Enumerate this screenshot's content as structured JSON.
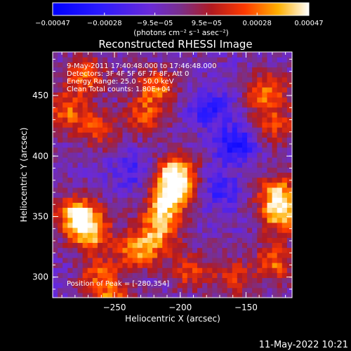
{
  "chart_data": {
    "type": "heatmap",
    "title": "Reconstructed RHESSI Image",
    "xlabel": "Heliocentric X (arcsec)",
    "ylabel": "Heliocentric Y (arcsec)",
    "xlim": [
      -297,
      -115
    ],
    "ylim": [
      283,
      486
    ],
    "x_ticks": [
      {
        "value": -250,
        "label": "−250"
      },
      {
        "value": -200,
        "label": "−200"
      },
      {
        "value": -150,
        "label": "−150"
      }
    ],
    "y_ticks": [
      {
        "value": 300,
        "label": "300"
      },
      {
        "value": 350,
        "label": "350"
      },
      {
        "value": 400,
        "label": "400"
      },
      {
        "value": 450,
        "label": "450"
      }
    ],
    "colorbar": {
      "range": [
        -0.00047,
        0.00047
      ],
      "ticks": [
        {
          "value": -0.00047,
          "label": "−0.00047"
        },
        {
          "value": -0.00028,
          "label": "−0.00028"
        },
        {
          "value": -9.5e-05,
          "label": "−9.5e−05"
        },
        {
          "value": 9.5e-05,
          "label": "9.5e−05"
        },
        {
          "value": 0.00028,
          "label": "0.00028"
        },
        {
          "value": 0.00047,
          "label": "0.00047"
        }
      ],
      "unit": "(photons cm⁻² s⁻¹ asec⁻²)"
    },
    "annotations": [
      "9-May-2011 17:40:48.000 to 17:46:48.000",
      "Detectors: 3F 4F 5F 6F 7F 8F, Att 0",
      "Energy Range: 25.0 - 50.0 keV",
      "Clean     Total counts: 1.80E+04"
    ],
    "peak_label": "Position of Peak = [-280,354]",
    "hot_spots": [
      {
        "x": -278,
        "y": 352,
        "intensity": 0.00047
      },
      {
        "x": -268,
        "y": 337,
        "intensity": 0.0004
      },
      {
        "x": -273,
        "y": 467,
        "intensity": 0.00032
      },
      {
        "x": -287,
        "y": 437,
        "intensity": 0.0003
      },
      {
        "x": -263,
        "y": 423,
        "intensity": 0.00025
      },
      {
        "x": -218,
        "y": 457,
        "intensity": 0.00032
      },
      {
        "x": -228,
        "y": 433,
        "intensity": 0.00026
      },
      {
        "x": -234,
        "y": 322,
        "intensity": 0.00031
      },
      {
        "x": -206,
        "y": 372,
        "intensity": 0.00045
      },
      {
        "x": -203,
        "y": 387,
        "intensity": 0.0004
      },
      {
        "x": -213,
        "y": 352,
        "intensity": 0.00036
      },
      {
        "x": -218,
        "y": 332,
        "intensity": 0.0003
      },
      {
        "x": -193,
        "y": 305,
        "intensity": 0.00024
      },
      {
        "x": -133,
        "y": 453,
        "intensity": 0.00035
      },
      {
        "x": -128,
        "y": 425,
        "intensity": 0.00025
      },
      {
        "x": -123,
        "y": 352,
        "intensity": 0.00042
      },
      {
        "x": -126,
        "y": 370,
        "intensity": 0.00036
      },
      {
        "x": -128,
        "y": 312,
        "intensity": 0.0003
      },
      {
        "x": -160,
        "y": 300,
        "intensity": 0.00022
      },
      {
        "x": -253,
        "y": 282,
        "intensity": 0.00028
      },
      {
        "x": -262,
        "y": 302,
        "intensity": 0.00026
      }
    ],
    "cold_spots": [
      {
        "x": -158,
        "y": 410,
        "intensity": -0.0003
      },
      {
        "x": -178,
        "y": 440,
        "intensity": -0.00024
      },
      {
        "x": -170,
        "y": 372,
        "intensity": -0.0002
      },
      {
        "x": -235,
        "y": 388,
        "intensity": -0.00018
      }
    ]
  },
  "footer_date": "11-May-2022 10:21"
}
